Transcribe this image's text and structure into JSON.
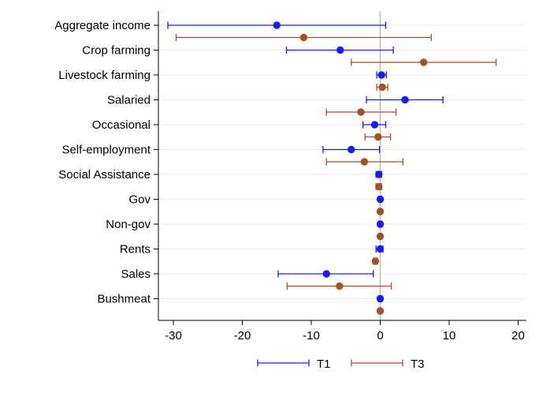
{
  "chart_data": {
    "type": "scatter",
    "title": "",
    "xlabel": "",
    "ylabel": "",
    "xlim": [
      -32,
      21
    ],
    "xticks": [
      -30,
      -20,
      -10,
      0,
      10,
      20
    ],
    "xtick_labels": [
      "-30",
      "-20",
      "-10",
      "0",
      "10",
      "20"
    ],
    "grid": true,
    "legend_position": "bottom",
    "reference_line_x": 0,
    "categories": [
      "Aggregate income",
      "Crop farming",
      "Livestock farming",
      "Salaried",
      "Occasional",
      "Self-employment",
      "Social Assistance",
      "Gov",
      "Non-gov",
      "Rents",
      "Sales",
      "Bushmeat"
    ],
    "series": [
      {
        "name": "T1",
        "color": "#1a1aff",
        "estimates": [
          -15.0,
          -5.8,
          0.2,
          3.6,
          -0.8,
          -4.2,
          -0.2,
          0.0,
          0.0,
          0.0,
          -7.8,
          0.0
        ],
        "ci_low": [
          -30.8,
          -13.6,
          -0.5,
          -2.0,
          -2.5,
          -8.3,
          -0.6,
          -0.2,
          -0.2,
          -0.6,
          -14.8,
          -0.2
        ],
        "ci_high": [
          0.8,
          1.9,
          0.9,
          9.1,
          0.8,
          -0.1,
          0.2,
          0.2,
          0.2,
          0.4,
          -1.0,
          0.2
        ]
      },
      {
        "name": "T3",
        "color": "#a0522d",
        "estimates": [
          -11.1,
          6.3,
          0.3,
          -2.8,
          -0.3,
          -2.3,
          -0.2,
          0.0,
          0.0,
          -0.7,
          -5.9,
          0.0
        ],
        "ci_low": [
          -29.6,
          -4.2,
          -0.5,
          -7.8,
          -2.2,
          -7.8,
          -0.6,
          -0.2,
          -0.2,
          -1.0,
          -13.5,
          -0.2
        ],
        "ci_high": [
          7.4,
          16.8,
          1.1,
          2.3,
          1.5,
          3.3,
          0.2,
          0.2,
          0.2,
          -0.4,
          1.6,
          0.2
        ]
      }
    ]
  }
}
